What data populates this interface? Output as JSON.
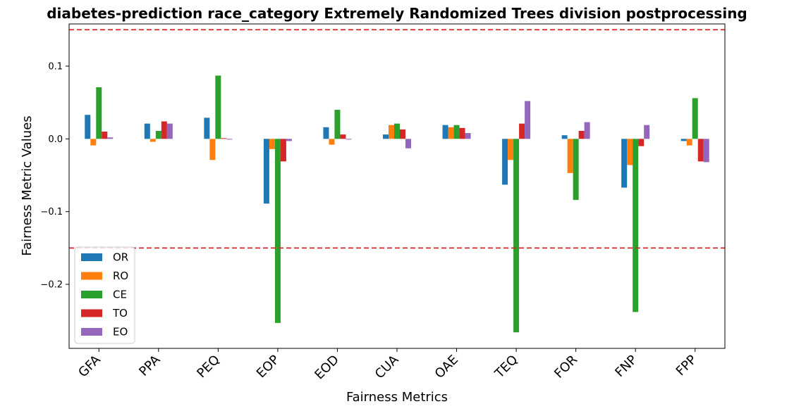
{
  "chart_data": {
    "type": "bar",
    "title": "diabetes-prediction race_category Extremely Randomized Trees division postprocessing",
    "xlabel": "Fairness Metrics",
    "ylabel": "Fairness Metric Values",
    "ylim": [
      -0.288,
      0.158
    ],
    "yticks": [
      -0.2,
      -0.1,
      0.0,
      0.1
    ],
    "ytick_labels": [
      "−0.2",
      "−0.1",
      "0.0",
      "0.1"
    ],
    "reference_lines": [
      0.15,
      -0.15
    ],
    "reference_line_color": "#d62728",
    "grid": false,
    "legend_position": "lower-left",
    "categories": [
      "GFA",
      "PPA",
      "PEQ",
      "EOP",
      "EOD",
      "CUA",
      "OAE",
      "TEQ",
      "FOR",
      "FNP",
      "FPP"
    ],
    "series": [
      {
        "name": "OR",
        "color": "#1f77b4",
        "values": [
          0.033,
          0.021,
          0.029,
          -0.089,
          0.016,
          0.006,
          0.019,
          -0.063,
          0.005,
          -0.067,
          -0.003
        ]
      },
      {
        "name": "RO",
        "color": "#ff7f0e",
        "values": [
          -0.009,
          -0.004,
          -0.029,
          -0.014,
          -0.008,
          0.019,
          0.016,
          -0.029,
          -0.047,
          -0.036,
          -0.009
        ]
      },
      {
        "name": "CE",
        "color": "#2ca02c",
        "values": [
          0.071,
          0.011,
          0.087,
          -0.253,
          0.04,
          0.021,
          0.019,
          -0.266,
          -0.084,
          -0.238,
          0.056
        ]
      },
      {
        "name": "TO",
        "color": "#d62728",
        "values": [
          0.01,
          0.024,
          0.001,
          -0.031,
          0.006,
          0.013,
          0.015,
          0.021,
          0.011,
          -0.01,
          -0.031
        ]
      },
      {
        "name": "EO",
        "color": "#9467bd",
        "values": [
          0.002,
          0.021,
          -0.001,
          -0.003,
          -0.001,
          -0.013,
          0.008,
          0.052,
          0.023,
          0.019,
          -0.032
        ]
      }
    ]
  }
}
